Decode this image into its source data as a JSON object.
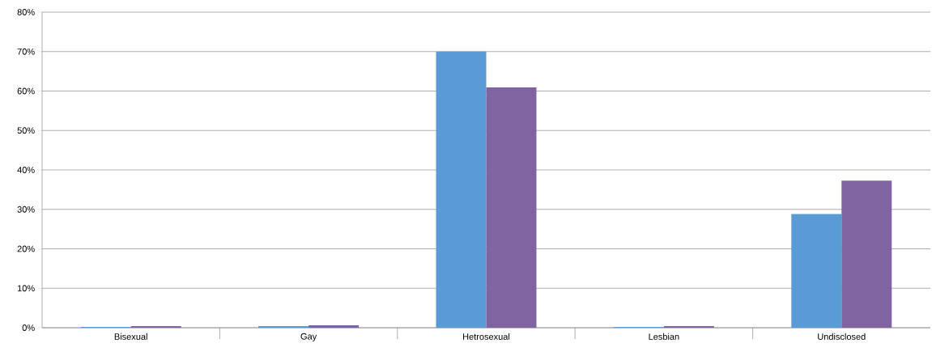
{
  "chart_data": {
    "type": "bar",
    "categories": [
      "Bisexual",
      "Gay",
      "Hetrosexual",
      "Lesbian",
      "Undisclosed"
    ],
    "series": [
      {
        "color": "#5b9bd5",
        "values": [
          0.2,
          0.4,
          70,
          0.2,
          28.8
        ]
      },
      {
        "color": "#8064a2",
        "values": [
          0.4,
          0.6,
          60.9,
          0.4,
          37.3
        ]
      }
    ],
    "ylim": [
      0,
      80
    ],
    "yticks": [
      {
        "value": 0,
        "label": "0%"
      },
      {
        "value": 10,
        "label": "10%"
      },
      {
        "value": 20,
        "label": "20%"
      },
      {
        "value": 30,
        "label": "30%"
      },
      {
        "value": 40,
        "label": "40%"
      },
      {
        "value": 50,
        "label": "50%"
      },
      {
        "value": 60,
        "label": "60%"
      },
      {
        "value": 70,
        "label": "70%"
      },
      {
        "value": 80,
        "label": "80%"
      }
    ],
    "grid": "y"
  }
}
